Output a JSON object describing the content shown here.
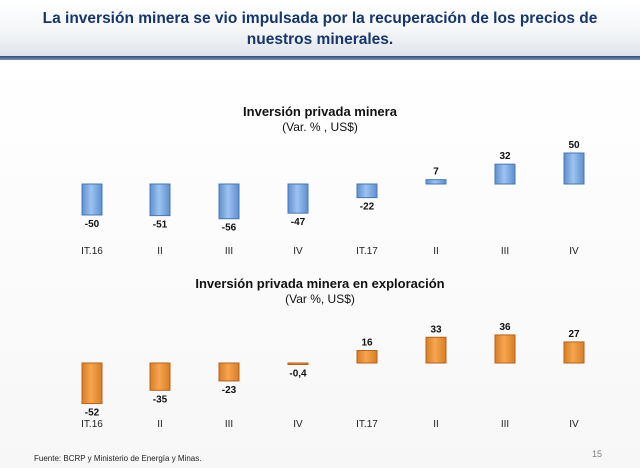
{
  "header": {
    "title": "La inversión minera se vio impulsada por la recuperación de los precios de nuestros minerales."
  },
  "footer": {
    "source": "Fuente: BCRP y Ministerio de Energía y Minas.",
    "page_number": "15"
  },
  "colors": {
    "blue_bar": "#9ec3f0",
    "blue_bar_border": "#4a77b4",
    "orange_bar": "#f6a550",
    "orange_bar_border": "#b5631c"
  },
  "chart_data": [
    {
      "type": "bar",
      "title": "Inversión privada minera",
      "subtitle": "(Var. % , US$)",
      "categories": [
        "IT.16",
        "II",
        "III",
        "IV",
        "IT.17",
        "II",
        "III",
        "IV"
      ],
      "values": [
        -50,
        -51,
        -56,
        -47,
        -22,
        7,
        32,
        50
      ],
      "value_labels": [
        "-50",
        "-51",
        "-56",
        "-47",
        "-22",
        "7",
        "32",
        "50"
      ],
      "xlabel": "",
      "ylabel": "",
      "legend": "none",
      "grid": false
    },
    {
      "type": "bar",
      "title": "Inversión privada minera en exploración",
      "subtitle": "(Var %, US$)",
      "categories": [
        "IT.16",
        "II",
        "III",
        "IV",
        "IT.17",
        "II",
        "III",
        "IV"
      ],
      "values": [
        -52,
        -35,
        -23,
        -0.4,
        16,
        33,
        36,
        27
      ],
      "value_labels": [
        "-52",
        "-35",
        "-23",
        "-0,4",
        "16",
        "33",
        "36",
        "27"
      ],
      "xlabel": "",
      "ylabel": "",
      "legend": "none",
      "grid": false
    }
  ]
}
